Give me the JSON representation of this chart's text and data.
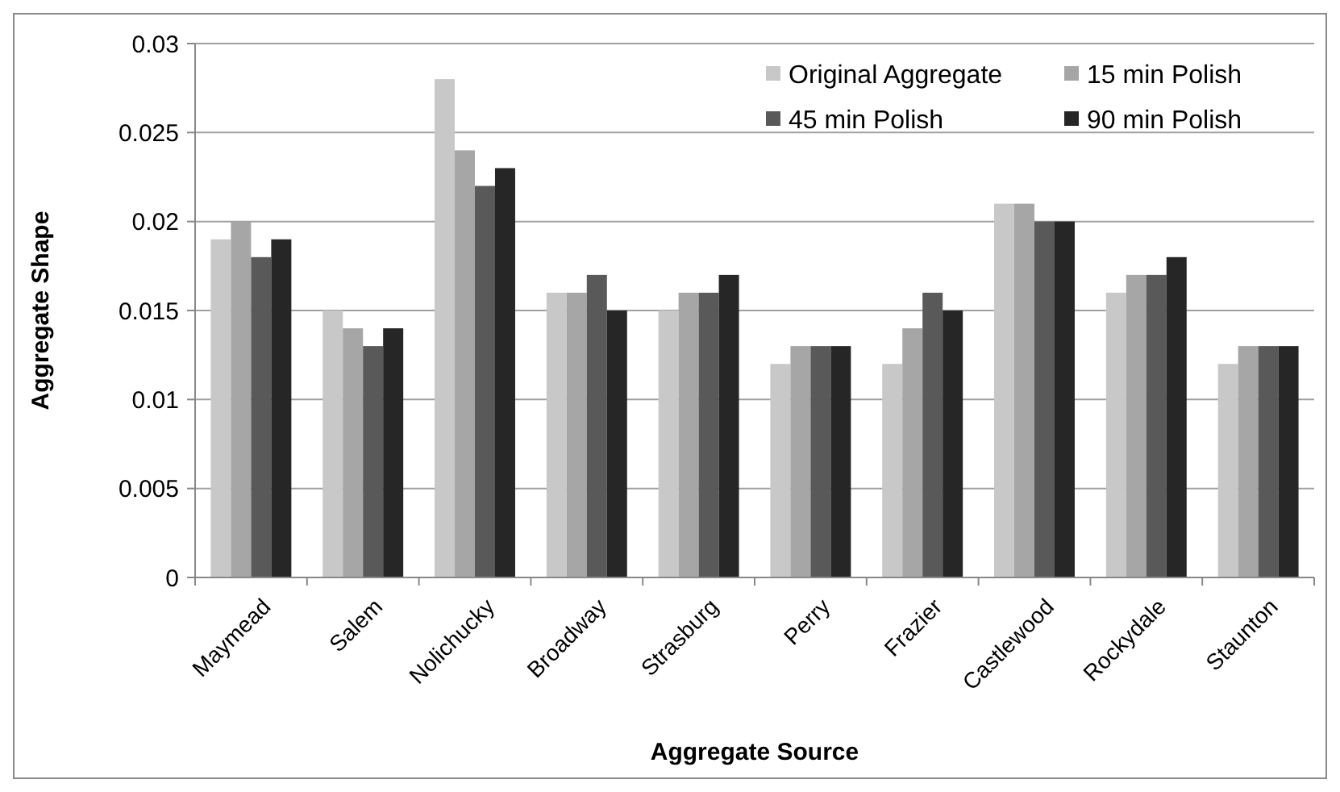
{
  "chart_data": {
    "type": "bar",
    "xlabel": "Aggregate Source",
    "ylabel": "Aggregate Shape",
    "categories": [
      "Maymead",
      "Salem",
      "Nolichucky",
      "Broadway",
      "Strasburg",
      "Perry",
      "Frazier",
      "Castlewood",
      "Rockydale",
      "Staunton"
    ],
    "series": [
      {
        "name": "Original Aggregate",
        "color": "#c8c8c8",
        "values": [
          0.019,
          0.015,
          0.028,
          0.016,
          0.015,
          0.012,
          0.012,
          0.021,
          0.016,
          0.012
        ]
      },
      {
        "name": "15 min Polish",
        "color": "#a6a6a6",
        "values": [
          0.02,
          0.014,
          0.024,
          0.016,
          0.016,
          0.013,
          0.014,
          0.021,
          0.017,
          0.013
        ]
      },
      {
        "name": "45 min Polish",
        "color": "#595959",
        "values": [
          0.018,
          0.013,
          0.022,
          0.017,
          0.016,
          0.013,
          0.016,
          0.02,
          0.017,
          0.013
        ]
      },
      {
        "name": "90 min Polish",
        "color": "#262626",
        "values": [
          0.019,
          0.014,
          0.023,
          0.015,
          0.017,
          0.013,
          0.015,
          0.02,
          0.018,
          0.013
        ]
      }
    ],
    "ylim": [
      0,
      0.03
    ],
    "yticks": [
      0,
      0.005,
      0.01,
      0.015,
      0.02,
      0.025,
      0.03
    ],
    "grid": "y",
    "legend": "top right"
  }
}
